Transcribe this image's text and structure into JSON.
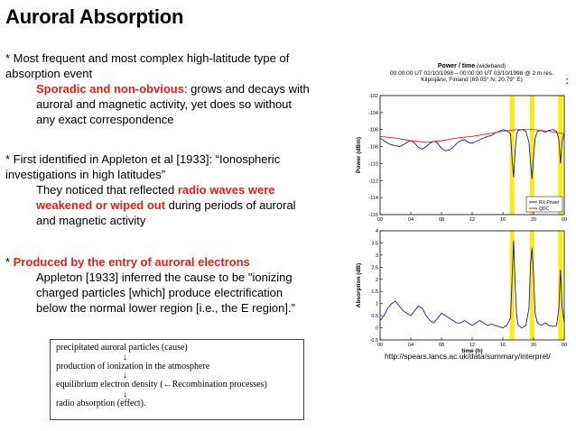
{
  "slide": {
    "title": "Auroral Absorption",
    "bullet1": {
      "line1": "* Most frequent and most complex high-latitude type of",
      "line2": "absorption event",
      "highlight": "Sporadic and non-obvious",
      "rest1": ":  grows and decays with",
      "rest2": "auroral and magnetic activity, yet does so without",
      "rest3": "any exact correspondence"
    },
    "bullet2": {
      "line1": "* First identified in Appleton et al [1933]: “Ionospheric",
      "line2": "investigations in high latitudes”",
      "pre": " They noticed that reflected ",
      "highlight1": "radio waves were",
      "highlight2": "weakened or wiped out",
      "rest1": " during periods of auroral",
      "rest2": "and magnetic activity"
    },
    "bullet3": {
      "star": "* ",
      "highlight": "Produced by the entry of auroral electrons",
      "line1": "Appleton [1933] inferred the cause to be \"ionizing",
      "line2": "charged particles [which] produce electrification",
      "line3": "below the normal lower region [i.e., the E region].”"
    },
    "flow": {
      "step1": "precipitated auroral particles (cause)",
      "step2": "production of ionization in the atmosphere",
      "step3": "equilibrium electron density (←Recombination processes)",
      "step4": "radio absorption (effect).",
      "arrow": "↓"
    },
    "plot_header": {
      "title": "Power / time",
      "title_suffix": "(wideband)",
      "line2": "00:00:00 UT 02/10/1998 – 00:00:00 UT 03/10/1998 @ 2 m res.",
      "line3": "Kilpisjärvi, Finland (69.05° N, 20.79° E)"
    },
    "red_colon": ":",
    "url": "http://spears.lancs.ac.uk/data/summary/interpret/"
  },
  "chart_data": [
    {
      "type": "line",
      "xlabel": "",
      "ylabel": "Power (dBm)",
      "xlim": [
        0,
        24
      ],
      "ylim": [
        -116,
        -102
      ],
      "xticks": [
        "00",
        "04",
        "08",
        "12",
        "16",
        "20",
        "00"
      ],
      "yticks": [
        "-102",
        "-104",
        "-106",
        "-108",
        "-110",
        "-112",
        "-114",
        "-116"
      ],
      "highlight_x": [
        17.2,
        19.8,
        23.5
      ],
      "series": [
        {
          "name": "RX Power",
          "color": "#1a1aa0",
          "x": [
            0,
            0.5,
            1,
            1.5,
            2,
            2.5,
            3,
            3.5,
            4,
            4.5,
            5,
            5.5,
            6,
            6.5,
            7,
            7.5,
            8,
            8.5,
            9,
            9.5,
            10,
            10.5,
            11,
            11.5,
            12,
            12.5,
            13,
            13.5,
            14,
            14.5,
            15,
            15.5,
            16,
            16.5,
            17,
            17.2,
            17.4,
            17.6,
            17.8,
            18,
            18.5,
            19,
            19.4,
            19.6,
            19.8,
            20,
            20.2,
            20.5,
            21,
            21.5,
            22,
            22.5,
            23,
            23.3,
            23.5,
            23.7,
            24
          ],
          "y": [
            -107,
            -107.3,
            -107.6,
            -107.8,
            -107.9,
            -108,
            -107.8,
            -107.5,
            -107.3,
            -107.6,
            -108.1,
            -108.3,
            -108,
            -107.6,
            -107.4,
            -107.6,
            -108.2,
            -108.5,
            -108.4,
            -108.1,
            -107.6,
            -107.3,
            -107.2,
            -107.5,
            -107.6,
            -107.4,
            -107.2,
            -107,
            -106.8,
            -106.7,
            -106.4,
            -106.2,
            -106,
            -106.1,
            -106.5,
            -109.5,
            -111.6,
            -108.5,
            -106.5,
            -106.1,
            -106,
            -106.2,
            -107.5,
            -109.8,
            -111.8,
            -109.2,
            -107,
            -106.2,
            -106.1,
            -106.3,
            -106.1,
            -106,
            -106.2,
            -107.2,
            -110,
            -107.5,
            -106.3
          ]
        },
        {
          "name": "QDC",
          "color": "#e0201a",
          "x": [
            0,
            2,
            4,
            6,
            8,
            10,
            12,
            14,
            16,
            18,
            20,
            22,
            24
          ],
          "y": [
            -106.8,
            -107,
            -107.3,
            -107.5,
            -107.3,
            -107,
            -106.8,
            -106.5,
            -106.2,
            -106,
            -106,
            -106.2,
            -106.5
          ]
        }
      ]
    },
    {
      "type": "line",
      "xlabel": "time (h)",
      "ylabel": "Absorption (dB)",
      "xlim": [
        0,
        24
      ],
      "ylim": [
        -0.5,
        4
      ],
      "xticks": [
        "00",
        "04",
        "08",
        "12",
        "16",
        "20",
        "00"
      ],
      "yticks": [
        "4",
        "3.5",
        "3",
        "2.5",
        "2",
        "1.5",
        "1",
        "0.5",
        "0",
        "-0.5"
      ],
      "highlight_x": [
        17.2,
        19.8,
        23.5
      ],
      "series": [
        {
          "name": "",
          "color": "#1a1aa0",
          "x": [
            0,
            0.5,
            1,
            1.5,
            2,
            2.5,
            3,
            3.5,
            4,
            4.5,
            5,
            5.5,
            6,
            6.5,
            7,
            7.5,
            8,
            8.5,
            9,
            9.5,
            10,
            10.5,
            11,
            11.5,
            12,
            12.5,
            13,
            13.5,
            14,
            14.5,
            15,
            15.5,
            16,
            16.5,
            17,
            17.2,
            17.4,
            17.6,
            17.8,
            18,
            18.5,
            19,
            19.4,
            19.6,
            19.8,
            20,
            20.2,
            20.5,
            21,
            21.5,
            22,
            22.5,
            23,
            23.3,
            23.5,
            23.7,
            24
          ],
          "y": [
            0.3,
            0.5,
            0.8,
            1.0,
            1.1,
            0.9,
            0.7,
            0.6,
            0.5,
            0.7,
            0.9,
            0.8,
            0.5,
            0.3,
            0.2,
            0.4,
            0.6,
            0.5,
            0.4,
            0.3,
            0.2,
            0.2,
            0.3,
            0.2,
            0.1,
            0.2,
            0.3,
            0.2,
            0.1,
            0.15,
            0.1,
            0.05,
            0.0,
            0.1,
            0.4,
            2.0,
            3.6,
            1.8,
            0.5,
            0.1,
            0.0,
            0.1,
            0.8,
            2.6,
            3.3,
            2.2,
            0.6,
            0.2,
            0.1,
            0.2,
            0.1,
            0.05,
            0.1,
            0.8,
            2.4,
            0.9,
            0.2
          ]
        }
      ]
    }
  ]
}
